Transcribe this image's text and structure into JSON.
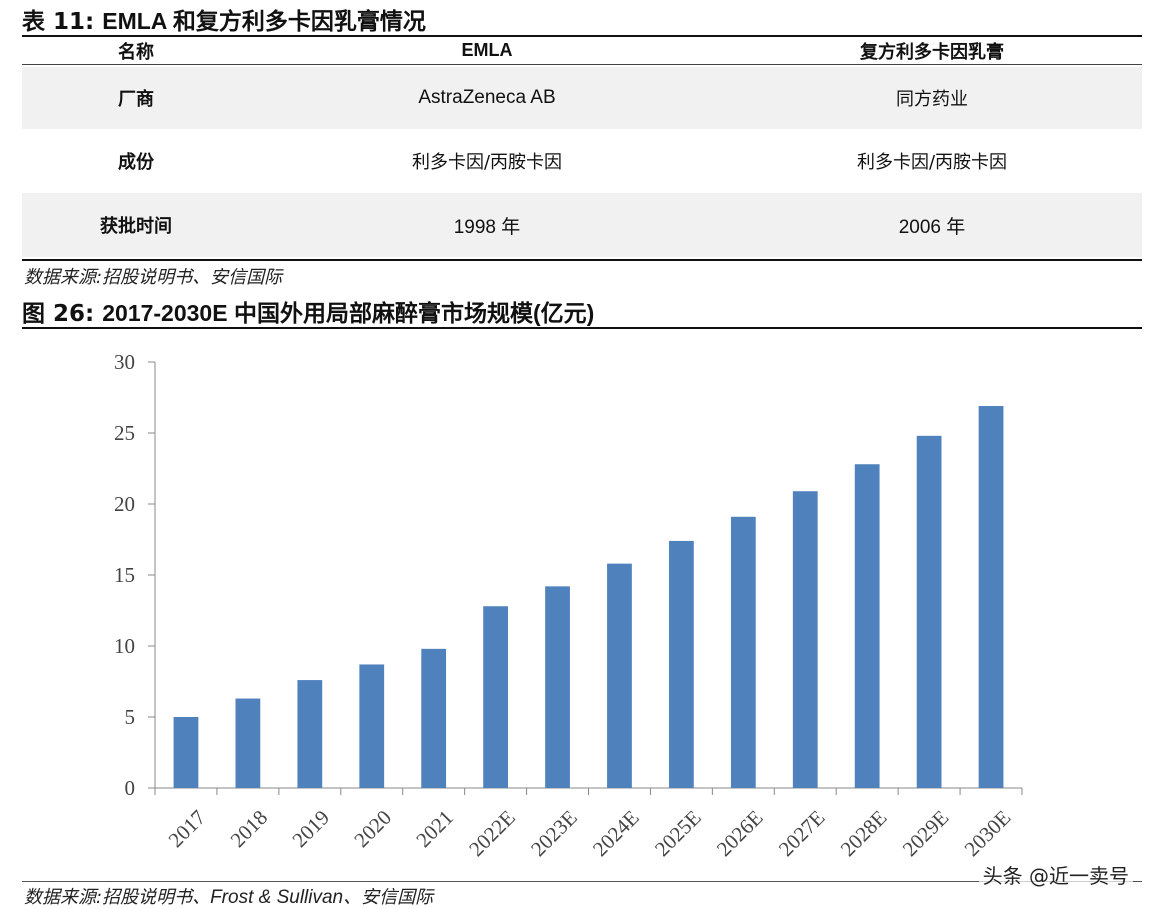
{
  "table": {
    "title_prefix": "表 11:",
    "title_text": "EMLA 和复方利多卡因乳膏情况",
    "headers": [
      "名称",
      "EMLA",
      "复方利多卡因乳膏"
    ],
    "rows": [
      {
        "label": "厂商",
        "emla": "AstraZeneca AB",
        "compound": "同方药业"
      },
      {
        "label": "成份",
        "emla": "利多卡因/丙胺卡因",
        "compound": "利多卡因/丙胺卡因"
      },
      {
        "label": "获批时间",
        "emla": "1998 年",
        "compound": "2006 年"
      }
    ],
    "source": "数据来源:招股说明书、安信国际"
  },
  "figure": {
    "title_prefix": "图 26:",
    "title_text": "2017-2030E 中国外用局部麻醉膏市场规模(亿元)",
    "source_prefix": "数据来源:招股说明书、",
    "source_en": "Frost & Sullivan",
    "source_suffix": "、安信国际"
  },
  "chart_data": {
    "type": "bar",
    "categories": [
      "2017",
      "2018",
      "2019",
      "2020",
      "2021",
      "2022E",
      "2023E",
      "2024E",
      "2025E",
      "2026E",
      "2027E",
      "2028E",
      "2029E",
      "2030E"
    ],
    "values": [
      5.0,
      6.3,
      7.6,
      8.7,
      9.8,
      12.8,
      14.2,
      15.8,
      17.4,
      19.1,
      20.9,
      22.8,
      24.8,
      26.9
    ],
    "yticks": [
      "0",
      "5",
      "10",
      "15",
      "20",
      "25",
      "30"
    ],
    "ylim": [
      0,
      30
    ],
    "title": "",
    "xlabel": "",
    "ylabel": "",
    "bar_color": "#4f81bd",
    "grid": false
  },
  "watermark": "头条 @近一卖号"
}
